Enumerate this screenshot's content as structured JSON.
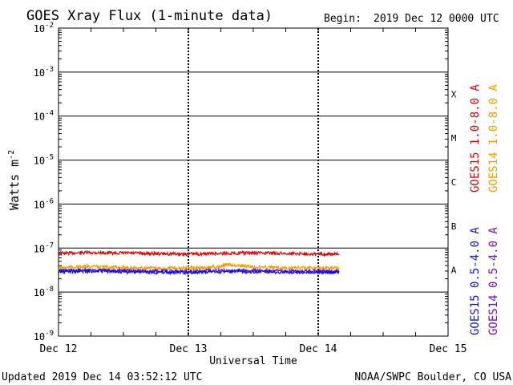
{
  "header": {
    "title": "GOES Xray Flux (1-minute data)",
    "begin_label": "Begin:",
    "begin_value": "2019 Dec 12 0000 UTC"
  },
  "footer": {
    "updated": "Updated 2019 Dec 14 03:52:12 UTC",
    "credit": "NOAA/SWPC Boulder, CO USA"
  },
  "chart_data": {
    "type": "line",
    "title": "GOES Xray Flux (1-minute data)",
    "xlabel": "Universal Time",
    "ylabel": "Watts m",
    "ylabel_sup": "-2",
    "y_scale": "log",
    "ylim": [
      1e-09,
      0.01
    ],
    "x_ticks": [
      "Dec 12",
      "Dec 13",
      "Dec 14",
      "Dec 15"
    ],
    "xlim_days": [
      0,
      3
    ],
    "y_ticks": [
      {
        "mant": "10",
        "exp": "-2",
        "value": 0.01
      },
      {
        "mant": "10",
        "exp": "-3",
        "value": 0.001
      },
      {
        "mant": "10",
        "exp": "-4",
        "value": 0.0001
      },
      {
        "mant": "10",
        "exp": "-5",
        "value": 1e-05
      },
      {
        "mant": "10",
        "exp": "-6",
        "value": 1e-06
      },
      {
        "mant": "10",
        "exp": "-7",
        "value": 1e-07
      },
      {
        "mant": "10",
        "exp": "-8",
        "value": 1e-08
      },
      {
        "mant": "10",
        "exp": "-9",
        "value": 1e-09
      }
    ],
    "flare_classes": [
      {
        "label": "X",
        "value": 0.000316
      },
      {
        "label": "M",
        "value": 3.16e-05
      },
      {
        "label": "C",
        "value": 3.16e-06
      },
      {
        "label": "B",
        "value": 3.16e-07
      },
      {
        "label": "A",
        "value": 3.16e-08
      }
    ],
    "legend_placement": "right",
    "series": [
      {
        "name": "GOES15 1.0-8.0 A",
        "color": "#e00000",
        "x": [
          0,
          0.25,
          0.5,
          0.75,
          1.0,
          1.25,
          1.5,
          1.75,
          2.0,
          2.16
        ],
        "values": [
          7.6e-08,
          7.9e-08,
          7.7e-08,
          7.5e-08,
          7.3e-08,
          7.6e-08,
          7.8e-08,
          7.6e-08,
          7.4e-08,
          7.2e-08
        ]
      },
      {
        "name": "GOES14 1.0-8.0 A",
        "color": "#f0a000",
        "x": [
          0,
          0.25,
          0.5,
          0.75,
          1.0,
          1.25,
          1.3,
          1.5,
          1.75,
          2.0,
          2.16
        ],
        "values": [
          3.6e-08,
          3.8e-08,
          3.6e-08,
          3.5e-08,
          3.5e-08,
          3.8e-08,
          4.3e-08,
          3.7e-08,
          3.6e-08,
          3.5e-08,
          3.5e-08
        ]
      },
      {
        "name": "GOES15 0.5-4.0 A",
        "color": "#1010e0",
        "x": [
          0,
          0.25,
          0.5,
          0.75,
          1.0,
          1.25,
          1.5,
          1.75,
          2.0,
          2.16
        ],
        "values": [
          2.9e-08,
          3e-08,
          2.9e-08,
          2.8e-08,
          2.8e-08,
          2.9e-08,
          2.9e-08,
          2.8e-08,
          2.8e-08,
          2.8e-08
        ]
      },
      {
        "name": "GOES14 0.5-4.0 A",
        "color": "#7010c0",
        "x": [
          0,
          0.25,
          0.5,
          0.75,
          1.0,
          1.25,
          1.5,
          1.75,
          2.0,
          2.16
        ],
        "values": [
          3.1e-08,
          3.2e-08,
          3.1e-08,
          3e-08,
          3e-08,
          3.1e-08,
          3.1e-08,
          3e-08,
          3e-08,
          3e-08
        ]
      }
    ]
  }
}
